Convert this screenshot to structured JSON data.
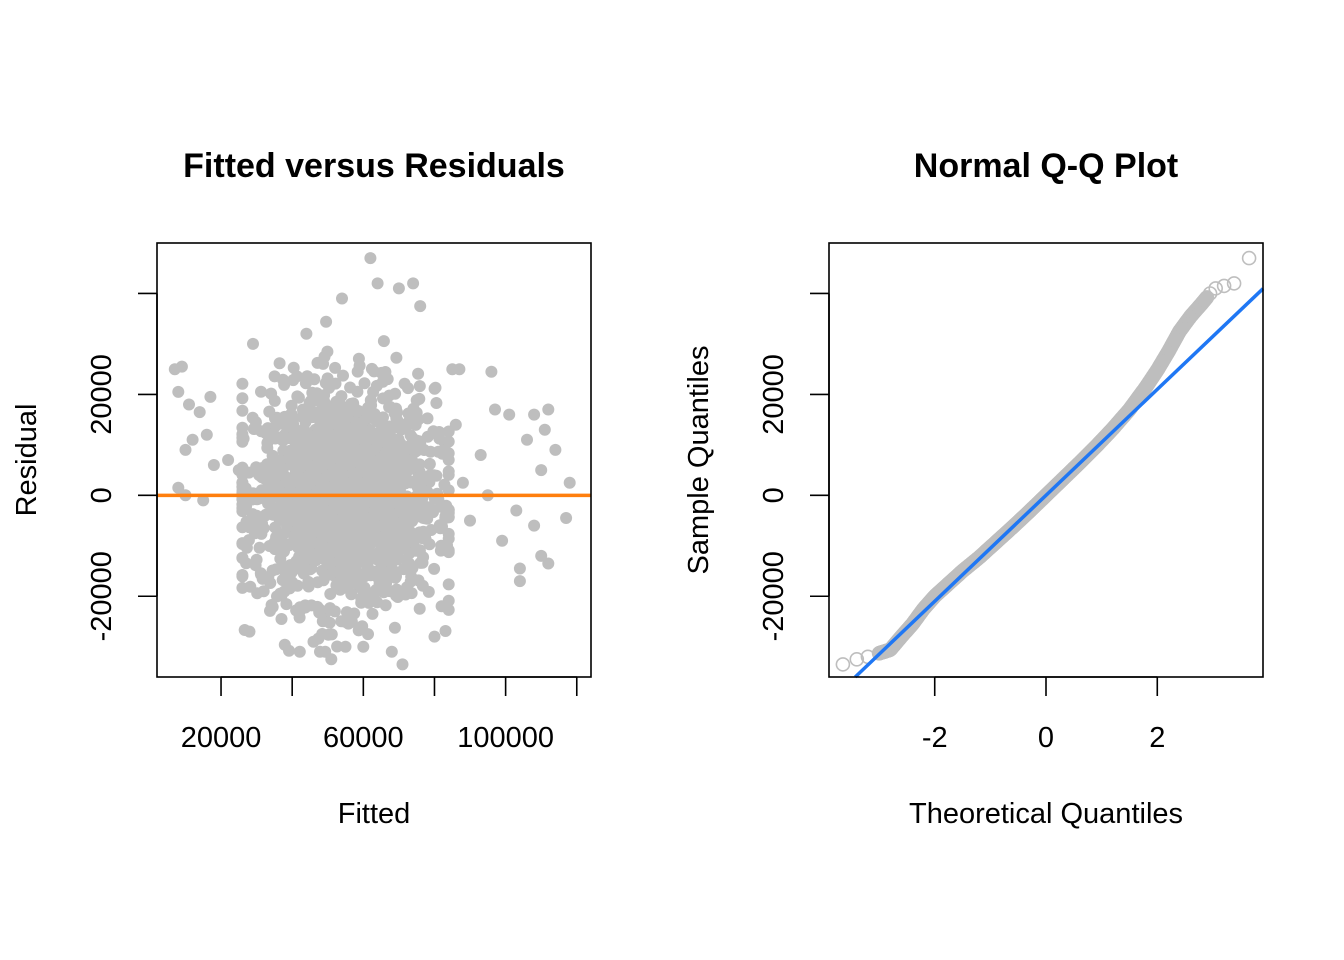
{
  "colors": {
    "points": "#bebebe",
    "residual_line": "#ff7f0e",
    "qq_line": "#1f77f4",
    "axis": "#000000",
    "background": "#ffffff"
  },
  "chart_data": [
    {
      "type": "scatter",
      "title": "Fitted versus Residuals",
      "xlabel": "Fitted",
      "ylabel": "Residual",
      "xlim": [
        2000,
        124000
      ],
      "ylim": [
        -36000,
        50000
      ],
      "x_ticks": [
        20000,
        40000,
        60000,
        80000,
        100000,
        120000
      ],
      "x_tick_labels": [
        "20000",
        "",
        "60000",
        "",
        "100000",
        ""
      ],
      "y_ticks": [
        -20000,
        0,
        20000,
        40000
      ],
      "y_tick_labels": [
        "-20000",
        "0",
        "20000",
        ""
      ],
      "marker": "filled-circle",
      "reference_line": {
        "orientation": "horizontal",
        "y": 0
      },
      "approx_point_count": 2000,
      "notable_points": [
        {
          "x": 7000,
          "y": 25000
        },
        {
          "x": 9000,
          "y": 25500
        },
        {
          "x": 8000,
          "y": 20500
        },
        {
          "x": 11000,
          "y": 18000
        },
        {
          "x": 14000,
          "y": 16500
        },
        {
          "x": 17000,
          "y": 19500
        },
        {
          "x": 10000,
          "y": 9000
        },
        {
          "x": 12000,
          "y": 11000
        },
        {
          "x": 16000,
          "y": 12000
        },
        {
          "x": 8000,
          "y": 1500
        },
        {
          "x": 10000,
          "y": 0
        },
        {
          "x": 15000,
          "y": -1000
        },
        {
          "x": 18000,
          "y": 6000
        },
        {
          "x": 22000,
          "y": 7000
        },
        {
          "x": 25000,
          "y": 5000
        },
        {
          "x": 28000,
          "y": -27000
        },
        {
          "x": 29000,
          "y": 30000
        },
        {
          "x": 44000,
          "y": 32000
        },
        {
          "x": 51000,
          "y": -32500
        },
        {
          "x": 54000,
          "y": 39000
        },
        {
          "x": 62000,
          "y": 47000
        },
        {
          "x": 64000,
          "y": 42000
        },
        {
          "x": 70000,
          "y": 41000
        },
        {
          "x": 74000,
          "y": 42000
        },
        {
          "x": 76000,
          "y": 37500
        },
        {
          "x": 71000,
          "y": -33500
        },
        {
          "x": 68000,
          "y": -31000
        },
        {
          "x": 60000,
          "y": -30000
        },
        {
          "x": 55000,
          "y": -30000
        },
        {
          "x": 46000,
          "y": -29000
        },
        {
          "x": 37000,
          "y": -24500
        },
        {
          "x": 32000,
          "y": -19000
        },
        {
          "x": 80000,
          "y": -28000
        },
        {
          "x": 82000,
          "y": -22000
        },
        {
          "x": 85000,
          "y": 25000
        },
        {
          "x": 87000,
          "y": 25000
        },
        {
          "x": 86000,
          "y": 14000
        },
        {
          "x": 88000,
          "y": 2500
        },
        {
          "x": 90000,
          "y": -5000
        },
        {
          "x": 93000,
          "y": 8000
        },
        {
          "x": 95000,
          "y": 0
        },
        {
          "x": 96000,
          "y": 24500
        },
        {
          "x": 97000,
          "y": 17000
        },
        {
          "x": 99000,
          "y": -9000
        },
        {
          "x": 101000,
          "y": 16000
        },
        {
          "x": 103000,
          "y": -3000
        },
        {
          "x": 104000,
          "y": -14500
        },
        {
          "x": 104000,
          "y": -17000
        },
        {
          "x": 106000,
          "y": 11000
        },
        {
          "x": 108000,
          "y": 16000
        },
        {
          "x": 108000,
          "y": -6000
        },
        {
          "x": 110000,
          "y": 5000
        },
        {
          "x": 110000,
          "y": -12000
        },
        {
          "x": 111000,
          "y": 13000
        },
        {
          "x": 112000,
          "y": 17000
        },
        {
          "x": 112000,
          "y": -13500
        },
        {
          "x": 114000,
          "y": 9000
        },
        {
          "x": 117000,
          "y": -4500
        },
        {
          "x": 118000,
          "y": 2500
        }
      ]
    },
    {
      "type": "scatter",
      "title": "Normal Q-Q Plot",
      "xlabel": "Theoretical Quantiles",
      "ylabel": "Sample Quantiles",
      "xlim": [
        -3.9,
        3.9
      ],
      "ylim": [
        -36000,
        50000
      ],
      "x_ticks": [
        -2,
        0,
        2
      ],
      "x_tick_labels": [
        "-2",
        "0",
        "2"
      ],
      "y_ticks": [
        -20000,
        0,
        20000,
        40000
      ],
      "y_tick_labels": [
        "-20000",
        "0",
        "20000",
        ""
      ],
      "marker": "open-circle",
      "reference_line": {
        "type": "qqline",
        "intercept": 0,
        "slope": 10500
      },
      "curve_points": [
        {
          "x": -3.65,
          "y": -33500
        },
        {
          "x": -3.4,
          "y": -32500
        },
        {
          "x": -3.2,
          "y": -32000
        },
        {
          "x": -3.0,
          "y": -31300
        },
        {
          "x": -2.8,
          "y": -30600
        },
        {
          "x": -2.6,
          "y": -28000
        },
        {
          "x": -2.4,
          "y": -25500
        },
        {
          "x": -2.2,
          "y": -22500
        },
        {
          "x": -2.0,
          "y": -20000
        },
        {
          "x": -1.8,
          "y": -18000
        },
        {
          "x": -1.5,
          "y": -15000
        },
        {
          "x": -1.2,
          "y": -12300
        },
        {
          "x": -0.9,
          "y": -9300
        },
        {
          "x": -0.6,
          "y": -6300
        },
        {
          "x": -0.3,
          "y": -3200
        },
        {
          "x": 0.0,
          "y": 0
        },
        {
          "x": 0.3,
          "y": 3200
        },
        {
          "x": 0.6,
          "y": 6400
        },
        {
          "x": 0.9,
          "y": 9700
        },
        {
          "x": 1.2,
          "y": 13200
        },
        {
          "x": 1.5,
          "y": 17000
        },
        {
          "x": 1.8,
          "y": 21500
        },
        {
          "x": 2.0,
          "y": 24800
        },
        {
          "x": 2.2,
          "y": 28500
        },
        {
          "x": 2.4,
          "y": 32500
        },
        {
          "x": 2.6,
          "y": 35500
        },
        {
          "x": 2.8,
          "y": 38000
        },
        {
          "x": 2.95,
          "y": 40000
        },
        {
          "x": 3.05,
          "y": 41000
        },
        {
          "x": 3.2,
          "y": 41500
        },
        {
          "x": 3.38,
          "y": 42000
        },
        {
          "x": 3.65,
          "y": 47000
        }
      ]
    }
  ]
}
